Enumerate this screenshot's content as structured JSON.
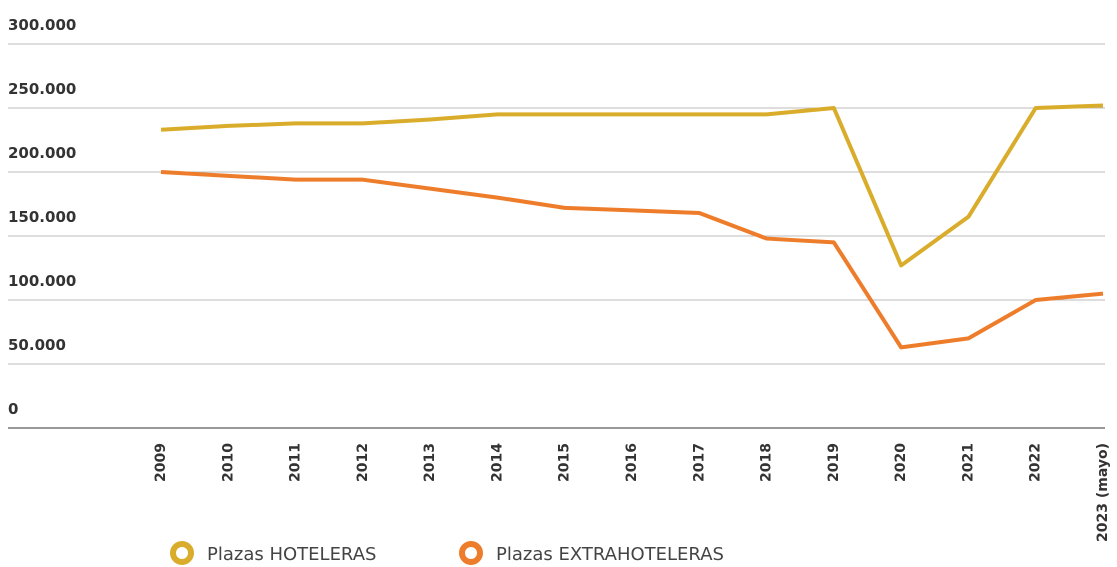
{
  "chart_data": {
    "type": "line",
    "categories": [
      "2009",
      "2010",
      "2011",
      "2012",
      "2013",
      "2014",
      "2015",
      "2016",
      "2017",
      "2018",
      "2019",
      "2020",
      "2021",
      "2022",
      "2023 (mayo)"
    ],
    "series": [
      {
        "name": "Plazas HOTELERAS",
        "color": "#d9ad2b",
        "values": [
          233000,
          236000,
          238000,
          238000,
          241000,
          245000,
          245000,
          245000,
          245000,
          245000,
          250000,
          127000,
          165000,
          250000,
          252000
        ]
      },
      {
        "name": "Plazas EXTRAHOTELERAS",
        "color": "#ee7d2b",
        "values": [
          200000,
          197000,
          194000,
          194000,
          187000,
          180000,
          172000,
          170000,
          168000,
          148000,
          145000,
          63000,
          70000,
          100000,
          105000
        ]
      }
    ],
    "ylim": [
      0,
      300000
    ],
    "yticks": [
      0,
      {
        "value": 50000,
        "label": "50.000"
      },
      {
        "value": 100000,
        "label": "100.000"
      },
      {
        "value": 150000,
        "label": "150.000"
      },
      {
        "value": 200000,
        "label": "200.000"
      },
      {
        "value": 250000,
        "label": "250.000"
      },
      {
        "value": 300000,
        "label": "300.000"
      }
    ],
    "grid": true
  }
}
